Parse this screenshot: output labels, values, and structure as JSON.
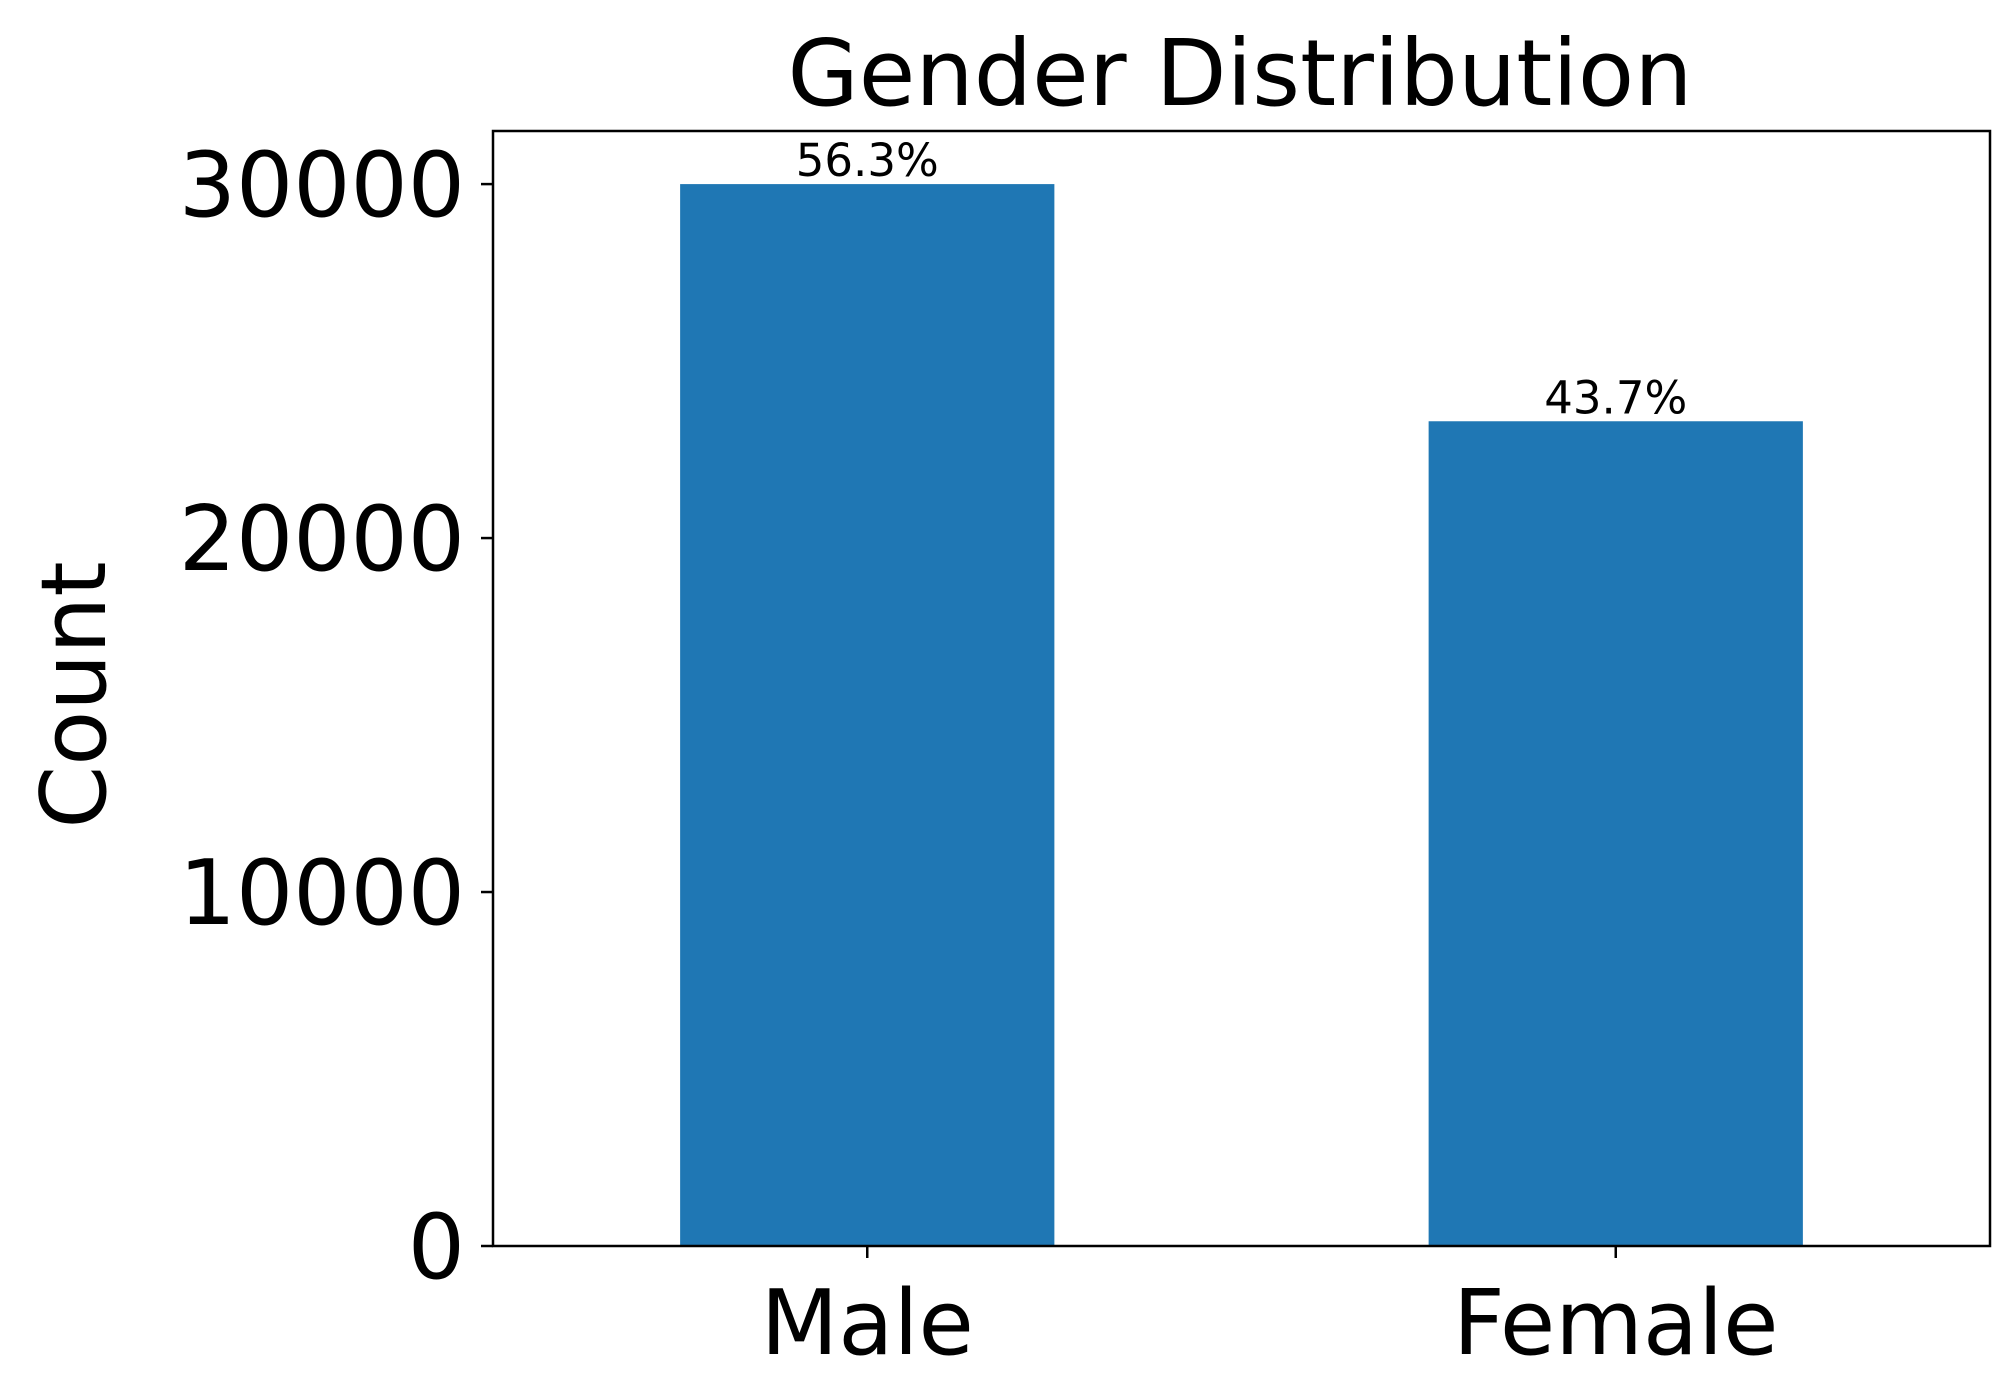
{
  "chart_data": {
    "type": "bar",
    "title": "Gender Distribution",
    "xlabel": "",
    "ylabel": "Count",
    "categories": [
      "Male",
      "Female"
    ],
    "values": [
      30000,
      23300
    ],
    "bar_labels": [
      "56.3%",
      "43.7%"
    ],
    "ylim": [
      0,
      31500
    ],
    "yticks": [
      0,
      10000,
      20000,
      30000
    ],
    "ytick_labels": [
      "0",
      "10000",
      "20000",
      "30000"
    ],
    "grid": false,
    "legend": false,
    "colors": {
      "bar": "#1f77b4",
      "axis": "#000000",
      "background": "#ffffff"
    }
  }
}
